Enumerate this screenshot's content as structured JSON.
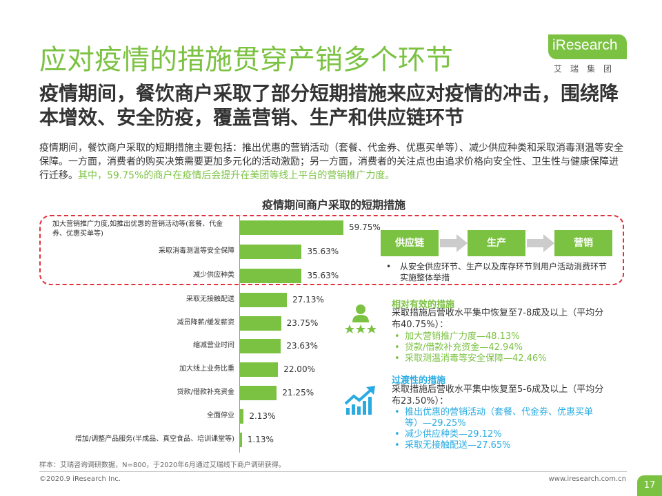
{
  "header": {
    "title": "应对疫情的措施贯穿产销多个环节",
    "subtitle": "疫情期间，餐饮商户采取了部分短期措施来应对疫情的冲击，围绕降本增效、安全防疫，覆盖营销、生产和供应链环节"
  },
  "logo": {
    "text": "iResearch",
    "cn": "艾瑞集团"
  },
  "description": {
    "main": "疫情期间，餐饮商户采取的短期措施主要包括：推出优惠的营销活动（套餐、代金券、优惠买单等）、减少供应种类和采取消毒测温等安全保障。一方面，消费者的购买决策需要更加多元化的活动激励；另一方面，消费者的关注点也由追求价格向安全性、卫生性与健康保障进行迁移。",
    "highlight": "其中，59.75%的商户在疫情后会提升在美团等线上平台的营销推广力度。"
  },
  "chart_data": {
    "type": "bar",
    "orientation": "horizontal",
    "title": "疫情期间商户采取的短期措施",
    "categories": [
      "加大营销推广力度,如推出优惠的营销活动等(套餐、代金券、优惠买单等)",
      "采取消毒测温等安全保障",
      "减少供应种类",
      "采取无接触配送",
      "减员降薪/缓发薪资",
      "缩减营业时间",
      "加大线上业务比重",
      "贷款/借款补充资金",
      "全面停业",
      "增加/调整产品服务(半成品、真空食品、培训课堂等)"
    ],
    "values": [
      59.75,
      35.63,
      35.63,
      27.13,
      23.75,
      23.63,
      22.0,
      21.25,
      2.13,
      1.13
    ],
    "value_labels": [
      "59.75%",
      "35.63%",
      "35.63%",
      "27.13%",
      "23.75%",
      "23.63%",
      "22.00%",
      "21.25%",
      "2.13%",
      "1.13%"
    ],
    "highlighted_categories": 3,
    "color": "#7cc242"
  },
  "flow": {
    "steps": [
      "供应链",
      "生产",
      "营销"
    ],
    "note": "从安全供应环节、生产以及库存环节到用户活动消费环节实施整体举措"
  },
  "effective": {
    "heading": "相对有效的措施",
    "text": "采取措施后营收水平集中恢复至7-8成及以上（平均分布40.75%）：",
    "items": [
      "加大营销推广力度—48.13%",
      "贷款/借款补充资金—42.94%",
      "采取测温消毒等安全保障—42.46%"
    ],
    "icon": "people-rating-icon"
  },
  "transitional": {
    "heading": "过渡性的措施",
    "text": "采取措施后营收水平集中恢复至5-6成及以上（平均分布23.50%）：",
    "items": [
      "推出优惠的营销活动（套餐、代金券、优惠买单等）—29.25%",
      "减少供应种类—29.12%",
      "采取无接触配送—27.65%"
    ],
    "icon": "growth-chart-icon"
  },
  "footer": {
    "source": "样本：艾瑞咨询调研数据，N=800，于2020年6月通过艾瑞线下商户调研获得。",
    "copyright": "©2020.9 iResearch Inc.",
    "site": "www.iresearch.com.cn",
    "page": "17"
  },
  "colors": {
    "accent": "#7cc242",
    "blue": "#29abe2",
    "highlight_border": "#e0303c"
  }
}
